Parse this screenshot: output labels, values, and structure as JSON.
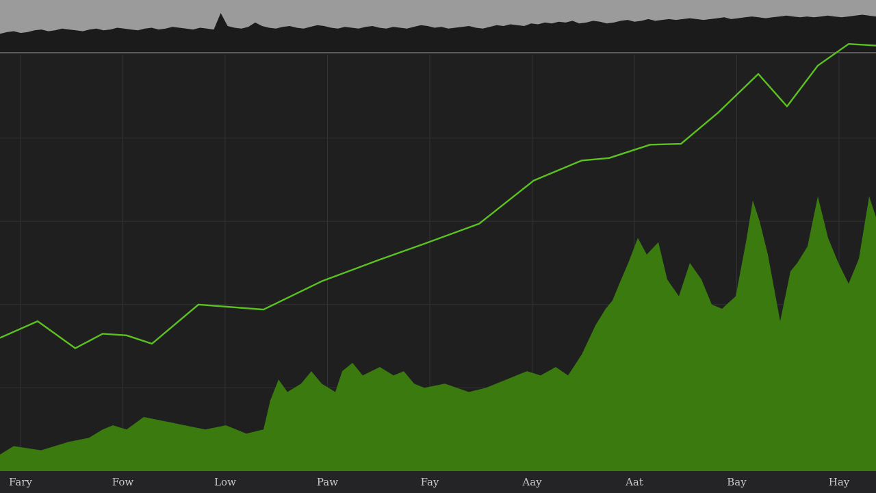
{
  "chart_data": [
    {
      "type": "area",
      "panel": "overview",
      "grid": false,
      "colors": {
        "background": "#9b9b9b",
        "area": "#1b1b1c"
      },
      "series": [
        {
          "values": [
            21,
            23,
            24,
            22,
            23,
            25,
            26,
            24,
            25,
            27,
            26,
            25,
            24,
            26,
            27,
            25,
            26,
            28,
            27,
            26,
            25,
            27,
            28,
            26,
            27,
            29,
            28,
            27,
            26,
            28,
            27,
            26,
            45,
            30,
            28,
            27,
            29,
            34,
            30,
            28,
            27,
            29,
            30,
            28,
            27,
            29,
            31,
            30,
            28,
            27,
            29,
            28,
            27,
            29,
            30,
            28,
            27,
            29,
            28,
            27,
            29,
            31,
            30,
            28,
            29,
            27,
            28,
            29,
            30,
            28,
            27,
            29,
            31,
            30,
            32,
            31,
            30,
            33,
            32,
            34,
            33,
            35,
            34,
            36,
            33,
            34,
            36,
            35,
            33,
            34,
            36,
            37,
            35,
            36,
            38,
            36,
            37,
            38,
            37,
            38,
            39,
            38,
            37,
            38,
            39,
            40,
            38,
            39,
            40,
            41,
            40,
            39,
            40,
            41,
            42,
            41,
            40,
            41,
            40,
            41,
            42,
            41,
            40,
            41,
            42,
            43,
            42,
            41
          ]
        }
      ]
    },
    {
      "type": "line",
      "panel": "main",
      "grid": true,
      "ylim": [
        0,
        100
      ],
      "xlabel": "",
      "ylabel": "",
      "colors": {
        "background": "#1f1f20",
        "grid": "#333336",
        "line": "#5cc21f",
        "area": "#3a7a0f"
      },
      "categories": [
        "Fary",
        "Fow",
        "Low",
        "Paw",
        "Fay",
        "Aay",
        "Aat",
        "Bay",
        "Hay"
      ],
      "series": [
        {
          "type": "line",
          "x": [
            0,
            55,
            110,
            150,
            185,
            222,
            290,
            385,
            470,
            555,
            620,
            700,
            780,
            850,
            890,
            950,
            995,
            1050,
            1108,
            1150,
            1195,
            1240,
            1280
          ],
          "values": [
            32,
            36,
            29.5,
            33,
            32.6,
            30.6,
            40,
            38.8,
            45.6,
            50.8,
            54.6,
            59.4,
            69.8,
            74.6,
            75.2,
            78.4,
            78.6,
            86.2,
            95.4,
            87.6,
            97.4,
            102.6,
            102.2
          ]
        },
        {
          "type": "area",
          "x": [
            0,
            20,
            60,
            100,
            130,
            150,
            165,
            185,
            210,
            240,
            270,
            300,
            330,
            360,
            385,
            395,
            407,
            420,
            440,
            455,
            470,
            490,
            500,
            515,
            530,
            555,
            575,
            590,
            605,
            620,
            650,
            685,
            710,
            740,
            770,
            790,
            812,
            830,
            850,
            870,
            885,
            895,
            905,
            918,
            932,
            945,
            962,
            975,
            992,
            1008,
            1025,
            1040,
            1055,
            1075,
            1090,
            1100,
            1110,
            1122,
            1140,
            1155,
            1165,
            1180,
            1195,
            1210,
            1225,
            1240,
            1255,
            1270,
            1280
          ],
          "values": [
            4,
            6,
            5,
            7,
            8,
            10,
            11,
            10,
            13,
            12,
            11,
            10,
            11,
            9,
            10,
            17,
            22,
            19,
            21,
            24,
            21,
            19,
            24,
            26,
            23,
            25,
            23,
            24,
            21,
            20,
            21,
            19,
            20,
            22,
            24,
            23,
            25,
            23,
            28,
            35,
            39,
            41,
            45,
            50,
            56,
            52,
            55,
            46,
            42,
            50,
            46,
            40,
            39,
            42,
            55,
            65,
            60,
            52,
            36,
            48,
            50,
            54,
            66,
            56,
            50,
            45,
            51,
            66,
            61
          ]
        }
      ]
    }
  ]
}
